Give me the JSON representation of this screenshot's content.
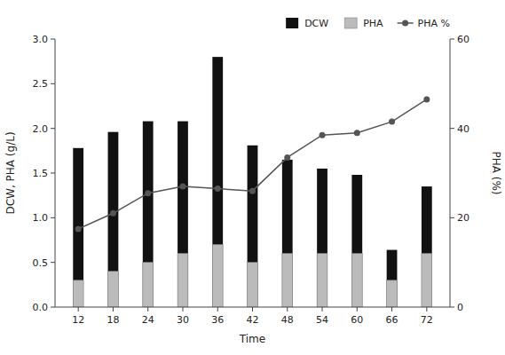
{
  "chart_data": {
    "type": "bar",
    "xlabel": "Time",
    "ylabel": "DCW, PHA (g/L)",
    "y2label": "PHA (%)",
    "x": [
      12,
      18,
      24,
      30,
      36,
      42,
      48,
      54,
      60,
      66,
      72
    ],
    "series": [
      {
        "name": "DCW",
        "type": "bar",
        "color": "#111111",
        "values": [
          1.78,
          1.96,
          2.08,
          2.08,
          2.8,
          1.81,
          1.65,
          1.55,
          1.48,
          0.64,
          1.35
        ]
      },
      {
        "name": "PHA",
        "type": "bar",
        "color": "#bbbbbb",
        "values": [
          0.3,
          0.4,
          0.5,
          0.6,
          0.7,
          0.5,
          0.6,
          0.6,
          0.6,
          0.3,
          0.6
        ]
      },
      {
        "name": "PHA %",
        "type": "line",
        "axis": "y2",
        "color": "#555555",
        "marker": "circle",
        "values": [
          17.5,
          21.0,
          25.5,
          27.0,
          26.5,
          26.0,
          33.5,
          38.5,
          39.0,
          41.5,
          46.5
        ]
      }
    ],
    "xlim": [
      8,
      76
    ],
    "xticks": [
      12,
      18,
      24,
      30,
      36,
      42,
      48,
      54,
      60,
      66,
      72
    ],
    "ylim": [
      0.0,
      3.0
    ],
    "yticks": [
      {
        "value": 0,
        "label": "0.0"
      },
      0.5,
      {
        "value": 1,
        "label": "1.0"
      },
      1.5,
      {
        "value": 2,
        "label": "2.0"
      },
      2.5,
      {
        "value": 3,
        "label": "3.0"
      }
    ],
    "y2lim": [
      0,
      60
    ],
    "y2ticks": [
      0,
      20,
      40,
      60
    ],
    "legend": "upper right",
    "grid": false
  }
}
